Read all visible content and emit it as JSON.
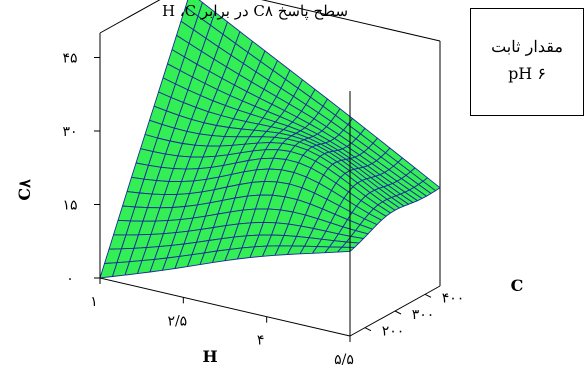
{
  "title": "سطح پاسخ C۸ در برابر H ،C",
  "constant_box": {
    "line1": "مقدار ثابت",
    "line2": "pH ۶"
  },
  "colors": {
    "surface_fill": "#33ee55",
    "surface_grid": "#1a2a9a",
    "axis": "#000000"
  },
  "chart_data": {
    "type": "surface3d",
    "title": "سطح پاسخ C۸ در برابر H ،C",
    "xlabel": "H",
    "ylabel": "C",
    "zlabel": "C۸",
    "x_ticks": [
      "۱",
      "۲/۵",
      "۴",
      "۵/۵"
    ],
    "y_ticks": [
      "۲۰۰",
      "۳۰۰",
      "۴۰۰"
    ],
    "z_ticks": [
      "۰",
      "۱۵",
      "۳۰",
      "۴۵"
    ],
    "xlim": [
      1,
      5.5
    ],
    "ylim": [
      150,
      450
    ],
    "zlim": [
      0,
      50
    ],
    "grid_size": 20,
    "surface_corners": [
      {
        "H": 1,
        "C": 150,
        "z": 0
      },
      {
        "H": 1,
        "C": 450,
        "z": 48
      },
      {
        "H": 5.5,
        "C": 450,
        "z": 20
      },
      {
        "H": 5.5,
        "C": 150,
        "z": 17
      }
    ],
    "surface_peak": {
      "H": 3.8,
      "C": 280,
      "z": 28
    },
    "grid": "off",
    "box": "on"
  }
}
